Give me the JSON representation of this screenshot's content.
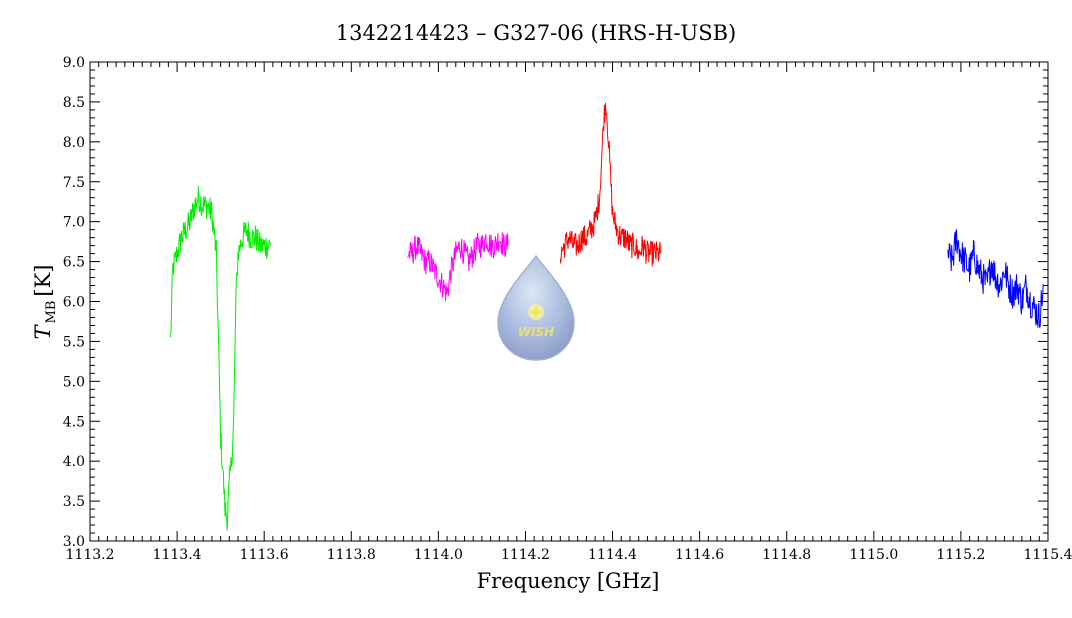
{
  "chart_data": {
    "type": "line",
    "title": "1342214423 – G327-06 (HRS-H-USB)",
    "xlabel": "Frequency [GHz]",
    "ylabel_main": "T",
    "ylabel_sub": "MB",
    "ylabel_unit": "[K]",
    "xlim": [
      1113.2,
      1115.4
    ],
    "ylim": [
      3.0,
      9.0
    ],
    "x_ticks": [
      "1113.2",
      "1113.4",
      "1113.6",
      "1113.8",
      "1114.0",
      "1114.2",
      "1114.4",
      "1114.6",
      "1114.8",
      "1115.0",
      "1115.2",
      "1115.4"
    ],
    "y_ticks": [
      "3.0",
      "3.5",
      "4.0",
      "4.5",
      "5.0",
      "5.5",
      "6.0",
      "6.5",
      "7.0",
      "7.5",
      "8.0",
      "8.5",
      "9.0"
    ],
    "grid": false,
    "series": [
      {
        "color": "#00ee00",
        "x": [
          1113.385,
          1113.39,
          1113.4,
          1113.41,
          1113.42,
          1113.43,
          1113.44,
          1113.45,
          1113.46,
          1113.47,
          1113.48,
          1113.49,
          1113.495,
          1113.5,
          1113.505,
          1113.51,
          1113.515,
          1113.52,
          1113.525,
          1113.53,
          1113.535,
          1113.54,
          1113.55,
          1113.56,
          1113.57,
          1113.58,
          1113.59,
          1113.6,
          1113.615
        ],
        "y": [
          5.5,
          6.4,
          6.6,
          6.8,
          6.9,
          7.0,
          7.2,
          7.3,
          7.2,
          7.2,
          7.1,
          6.6,
          5.5,
          4.3,
          3.9,
          3.4,
          3.3,
          3.7,
          4.0,
          4.5,
          6.0,
          6.6,
          6.8,
          6.9,
          6.8,
          6.8,
          6.7,
          6.7,
          6.7
        ]
      },
      {
        "color": "#ff00ff",
        "x": [
          1113.93,
          1113.94,
          1113.95,
          1113.96,
          1113.97,
          1113.98,
          1113.99,
          1114.0,
          1114.01,
          1114.02,
          1114.03,
          1114.04,
          1114.05,
          1114.06,
          1114.07,
          1114.08,
          1114.09,
          1114.1,
          1114.11,
          1114.12,
          1114.13,
          1114.14,
          1114.15,
          1114.16
        ],
        "y": [
          6.6,
          6.6,
          6.7,
          6.6,
          6.5,
          6.5,
          6.4,
          6.3,
          6.2,
          6.1,
          6.4,
          6.6,
          6.7,
          6.6,
          6.5,
          6.6,
          6.7,
          6.7,
          6.8,
          6.7,
          6.7,
          6.8,
          6.7,
          6.7
        ]
      },
      {
        "color": "#ff0000",
        "x": [
          1114.28,
          1114.29,
          1114.3,
          1114.31,
          1114.32,
          1114.33,
          1114.34,
          1114.35,
          1114.36,
          1114.37,
          1114.375,
          1114.38,
          1114.385,
          1114.39,
          1114.395,
          1114.4,
          1114.41,
          1114.42,
          1114.43,
          1114.44,
          1114.45,
          1114.46,
          1114.47,
          1114.48,
          1114.49,
          1114.5,
          1114.51
        ],
        "y": [
          6.6,
          6.7,
          6.8,
          6.7,
          6.7,
          6.8,
          6.8,
          6.9,
          7.0,
          7.3,
          7.8,
          8.3,
          8.5,
          8.1,
          7.6,
          7.1,
          6.9,
          6.8,
          6.8,
          6.7,
          6.7,
          6.6,
          6.7,
          6.6,
          6.6,
          6.6,
          6.6
        ]
      },
      {
        "color": "#0000ff",
        "x": [
          1115.17,
          1115.18,
          1115.19,
          1115.2,
          1115.21,
          1115.22,
          1115.23,
          1115.24,
          1115.25,
          1115.26,
          1115.27,
          1115.28,
          1115.29,
          1115.3,
          1115.31,
          1115.32,
          1115.33,
          1115.34,
          1115.35,
          1115.36,
          1115.37,
          1115.38,
          1115.39
        ],
        "y": [
          6.6,
          6.5,
          6.8,
          6.6,
          6.5,
          6.4,
          6.6,
          6.4,
          6.3,
          6.2,
          6.5,
          6.3,
          6.2,
          6.4,
          6.2,
          6.1,
          6.2,
          6.0,
          6.2,
          6.0,
          5.9,
          5.8,
          6.2
        ]
      }
    ],
    "logo_text": "WISH"
  }
}
